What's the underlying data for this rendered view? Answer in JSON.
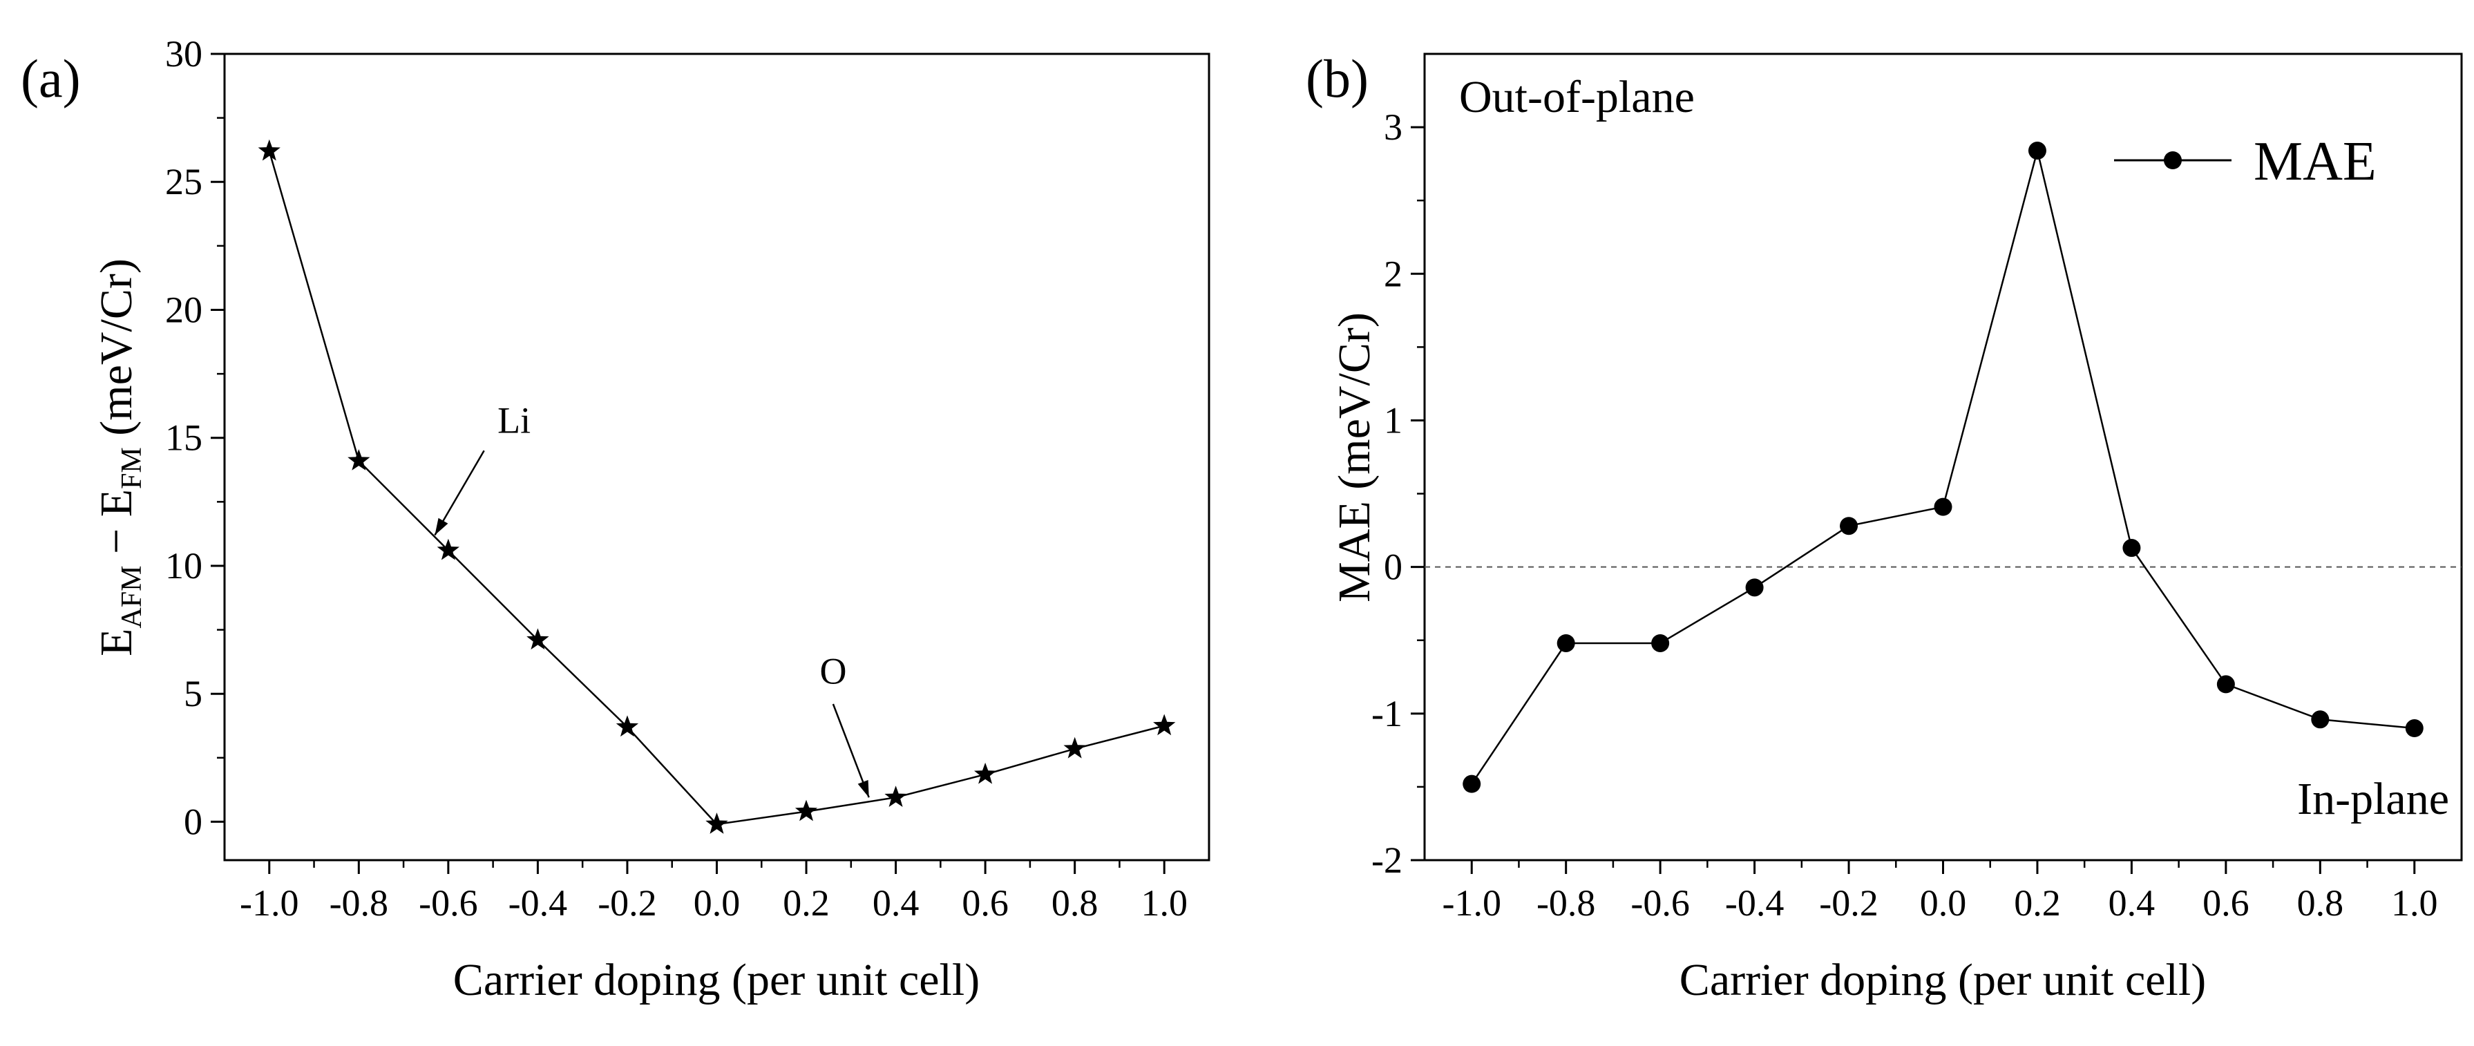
{
  "chart_data": [
    {
      "type": "line",
      "panel_label": "(a)",
      "ylabel_parts": {
        "e1": "E",
        "sub1": "AFM",
        "op": " − E",
        "sub2": "FM",
        "unit": " (meV/Cr)"
      },
      "xlabel": "Carrier doping (per unit cell)",
      "xlim": [
        -1.1,
        1.1
      ],
      "ylim": [
        -1.5,
        30
      ],
      "xticks": [
        -1.0,
        -0.8,
        -0.6,
        -0.4,
        -0.2,
        0.0,
        0.2,
        0.4,
        0.6,
        0.8,
        1.0
      ],
      "xtick_labels": [
        "-1.0",
        "-0.8",
        "-0.6",
        "-0.4",
        "-0.2",
        "0.0",
        "0.2",
        "0.4",
        "0.6",
        "0.8",
        "1.0"
      ],
      "yticks": [
        0,
        5,
        10,
        15,
        20,
        25,
        30
      ],
      "ytick_labels": [
        "0",
        "5",
        "10",
        "15",
        "20",
        "25",
        "30"
      ],
      "marker": "star",
      "x": [
        -1.0,
        -0.8,
        -0.6,
        -0.4,
        -0.2,
        0.0,
        0.2,
        0.4,
        0.6,
        0.8,
        1.0
      ],
      "y": [
        26.2,
        14.1,
        10.6,
        7.1,
        3.7,
        -0.1,
        0.4,
        0.95,
        1.85,
        2.85,
        3.75
      ],
      "annotations": [
        {
          "text": "Li",
          "text_x": -0.49,
          "text_y": 15.2,
          "arrow_from": [
            -0.52,
            14.5
          ],
          "arrow_to": [
            -0.63,
            11.2
          ]
        },
        {
          "text": "O",
          "text_x": 0.23,
          "text_y": 5.4,
          "arrow_from": [
            0.26,
            4.6
          ],
          "arrow_to": [
            0.34,
            0.95
          ]
        }
      ]
    },
    {
      "type": "line",
      "panel_label": "(b)",
      "ylabel": "MAE (meV/Cr)",
      "xlabel": "Carrier doping (per unit cell)",
      "xlim": [
        -1.1,
        1.1
      ],
      "ylim": [
        -2,
        3.5
      ],
      "xticks": [
        -1.0,
        -0.8,
        -0.6,
        -0.4,
        -0.2,
        0.0,
        0.2,
        0.4,
        0.6,
        0.8,
        1.0
      ],
      "xtick_labels": [
        "-1.0",
        "-0.8",
        "-0.6",
        "-0.4",
        "-0.2",
        "0.0",
        "0.2",
        "0.4",
        "0.6",
        "0.8",
        "1.0"
      ],
      "yticks": [
        -2,
        -1,
        0,
        1,
        2,
        3
      ],
      "ytick_labels": [
        "-2",
        "-1",
        "0",
        "1",
        "2",
        "3"
      ],
      "marker": "circle",
      "series": [
        {
          "name": "MAE",
          "x": [
            -1.0,
            -0.8,
            -0.6,
            -0.4,
            -0.2,
            0.0,
            0.2,
            0.4,
            0.6,
            0.8,
            1.0
          ],
          "y": [
            -1.48,
            -0.52,
            -0.52,
            -0.14,
            0.28,
            0.41,
            2.84,
            0.13,
            -0.8,
            -1.04,
            -1.1
          ]
        }
      ],
      "legend": "top-right",
      "reference_line_y": 0,
      "region_labels": {
        "top_left": "Out-of-plane",
        "bottom_right": "In-plane"
      }
    }
  ]
}
